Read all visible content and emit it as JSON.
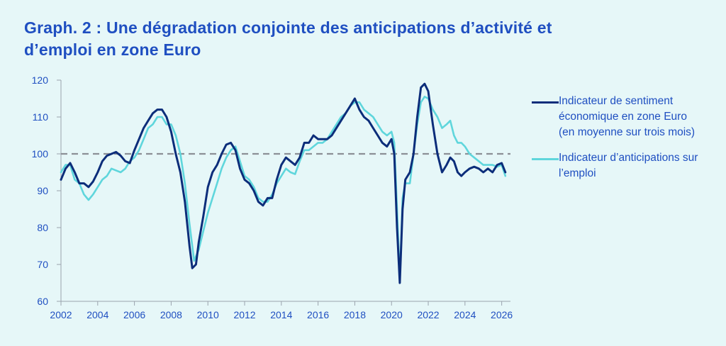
{
  "chart_data": {
    "type": "line",
    "title": "Graph. 2 : Une dégradation conjointe des anticipations d’activité et d’emploi en zone Euro",
    "xlabel": "",
    "ylabel": "",
    "xlim": [
      2002,
      2026.4
    ],
    "ylim": [
      60,
      120
    ],
    "x_ticks": [
      "2002",
      "2004",
      "2006",
      "2008",
      "2010",
      "2012",
      "2014",
      "2016",
      "2018",
      "2020",
      "2022",
      "2024",
      "2026"
    ],
    "y_ticks": [
      "60",
      "70",
      "80",
      "90",
      "100",
      "110",
      "120"
    ],
    "grid": false,
    "reference_line": 100,
    "legend_position": "right",
    "series": [
      {
        "name": "Indicateur de sentiment économique en zone Euro (en moyenne sur trois mois)",
        "color": "#0c2d7a",
        "points": [
          [
            2002.0,
            93
          ],
          [
            2002.25,
            96
          ],
          [
            2002.5,
            97.5
          ],
          [
            2002.75,
            95
          ],
          [
            2003.0,
            92
          ],
          [
            2003.25,
            92
          ],
          [
            2003.5,
            91
          ],
          [
            2003.75,
            92.5
          ],
          [
            2004.0,
            95
          ],
          [
            2004.25,
            98
          ],
          [
            2004.5,
            99.5
          ],
          [
            2004.75,
            100
          ],
          [
            2005.0,
            100.5
          ],
          [
            2005.25,
            99.5
          ],
          [
            2005.5,
            98
          ],
          [
            2005.75,
            97.5
          ],
          [
            2006.0,
            101
          ],
          [
            2006.25,
            104
          ],
          [
            2006.5,
            107
          ],
          [
            2006.75,
            109
          ],
          [
            2007.0,
            111
          ],
          [
            2007.25,
            112
          ],
          [
            2007.5,
            112
          ],
          [
            2007.75,
            110
          ],
          [
            2008.0,
            106
          ],
          [
            2008.25,
            100
          ],
          [
            2008.5,
            95
          ],
          [
            2008.75,
            87
          ],
          [
            2009.0,
            75
          ],
          [
            2009.15,
            69
          ],
          [
            2009.35,
            70
          ],
          [
            2009.5,
            76
          ],
          [
            2009.75,
            83
          ],
          [
            2010.0,
            91
          ],
          [
            2010.25,
            95
          ],
          [
            2010.5,
            97
          ],
          [
            2010.75,
            100
          ],
          [
            2011.0,
            102.5
          ],
          [
            2011.25,
            103
          ],
          [
            2011.5,
            101
          ],
          [
            2011.75,
            96
          ],
          [
            2012.0,
            93
          ],
          [
            2012.25,
            92
          ],
          [
            2012.5,
            90
          ],
          [
            2012.75,
            87
          ],
          [
            2013.0,
            86
          ],
          [
            2013.25,
            88
          ],
          [
            2013.5,
            88
          ],
          [
            2013.75,
            93
          ],
          [
            2014.0,
            97
          ],
          [
            2014.25,
            99
          ],
          [
            2014.5,
            98
          ],
          [
            2014.75,
            97
          ],
          [
            2015.0,
            99
          ],
          [
            2015.25,
            103
          ],
          [
            2015.5,
            103
          ],
          [
            2015.75,
            105
          ],
          [
            2016.0,
            104
          ],
          [
            2016.25,
            104
          ],
          [
            2016.5,
            104
          ],
          [
            2016.75,
            105
          ],
          [
            2017.0,
            107
          ],
          [
            2017.25,
            109
          ],
          [
            2017.5,
            111
          ],
          [
            2017.75,
            113
          ],
          [
            2018.0,
            115
          ],
          [
            2018.25,
            112
          ],
          [
            2018.5,
            110
          ],
          [
            2018.75,
            109
          ],
          [
            2019.0,
            107
          ],
          [
            2019.25,
            105
          ],
          [
            2019.5,
            103
          ],
          [
            2019.75,
            102
          ],
          [
            2020.0,
            104
          ],
          [
            2020.15,
            100
          ],
          [
            2020.3,
            80
          ],
          [
            2020.45,
            65
          ],
          [
            2020.6,
            85
          ],
          [
            2020.75,
            93
          ],
          [
            2021.0,
            95
          ],
          [
            2021.2,
            100
          ],
          [
            2021.4,
            110
          ],
          [
            2021.6,
            118
          ],
          [
            2021.8,
            119
          ],
          [
            2022.0,
            117
          ],
          [
            2022.25,
            108
          ],
          [
            2022.5,
            100
          ],
          [
            2022.75,
            95
          ],
          [
            2023.0,
            97
          ],
          [
            2023.2,
            99
          ],
          [
            2023.4,
            98
          ],
          [
            2023.6,
            95
          ],
          [
            2023.8,
            94
          ],
          [
            2024.0,
            95
          ],
          [
            2024.25,
            96
          ],
          [
            2024.5,
            96.5
          ],
          [
            2024.75,
            96
          ],
          [
            2025.0,
            95
          ],
          [
            2025.25,
            96
          ],
          [
            2025.5,
            95
          ],
          [
            2025.75,
            97
          ],
          [
            2026.0,
            97.5
          ],
          [
            2026.2,
            95
          ]
        ]
      },
      {
        "name": "Indicateur d’anticipations sur l’emploi",
        "color": "#5fd6dc",
        "points": [
          [
            2002.0,
            95
          ],
          [
            2002.25,
            97
          ],
          [
            2002.5,
            97
          ],
          [
            2002.75,
            93
          ],
          [
            2003.0,
            92
          ],
          [
            2003.25,
            89
          ],
          [
            2003.5,
            87.5
          ],
          [
            2003.75,
            89
          ],
          [
            2004.0,
            91
          ],
          [
            2004.25,
            93
          ],
          [
            2004.5,
            94
          ],
          [
            2004.75,
            96
          ],
          [
            2005.0,
            95.5
          ],
          [
            2005.25,
            95
          ],
          [
            2005.5,
            96
          ],
          [
            2005.75,
            98
          ],
          [
            2006.0,
            99
          ],
          [
            2006.25,
            101
          ],
          [
            2006.5,
            104
          ],
          [
            2006.75,
            107
          ],
          [
            2007.0,
            108
          ],
          [
            2007.25,
            110
          ],
          [
            2007.5,
            110
          ],
          [
            2007.75,
            108
          ],
          [
            2008.0,
            108
          ],
          [
            2008.25,
            105
          ],
          [
            2008.5,
            100
          ],
          [
            2008.75,
            92
          ],
          [
            2009.0,
            81
          ],
          [
            2009.25,
            71
          ],
          [
            2009.5,
            74
          ],
          [
            2009.75,
            79
          ],
          [
            2010.0,
            84
          ],
          [
            2010.25,
            88
          ],
          [
            2010.5,
            92
          ],
          [
            2010.75,
            96
          ],
          [
            2011.0,
            99
          ],
          [
            2011.25,
            101
          ],
          [
            2011.5,
            102
          ],
          [
            2011.75,
            98
          ],
          [
            2012.0,
            94
          ],
          [
            2012.25,
            93
          ],
          [
            2012.5,
            91
          ],
          [
            2012.75,
            88
          ],
          [
            2013.0,
            87
          ],
          [
            2013.25,
            87
          ],
          [
            2013.5,
            89
          ],
          [
            2013.75,
            92
          ],
          [
            2014.0,
            94
          ],
          [
            2014.25,
            96
          ],
          [
            2014.5,
            95
          ],
          [
            2014.75,
            94.5
          ],
          [
            2015.0,
            98
          ],
          [
            2015.25,
            101
          ],
          [
            2015.5,
            101
          ],
          [
            2015.75,
            102
          ],
          [
            2016.0,
            103
          ],
          [
            2016.25,
            103
          ],
          [
            2016.5,
            104
          ],
          [
            2016.75,
            106
          ],
          [
            2017.0,
            108
          ],
          [
            2017.25,
            110
          ],
          [
            2017.5,
            111
          ],
          [
            2017.75,
            113
          ],
          [
            2018.0,
            114
          ],
          [
            2018.25,
            114
          ],
          [
            2018.5,
            112
          ],
          [
            2018.75,
            111
          ],
          [
            2019.0,
            110
          ],
          [
            2019.25,
            108
          ],
          [
            2019.5,
            106
          ],
          [
            2019.75,
            105
          ],
          [
            2020.0,
            106
          ],
          [
            2020.15,
            103
          ],
          [
            2020.3,
            85
          ],
          [
            2020.45,
            66
          ],
          [
            2020.6,
            88
          ],
          [
            2020.75,
            92
          ],
          [
            2021.0,
            92
          ],
          [
            2021.2,
            100
          ],
          [
            2021.4,
            108
          ],
          [
            2021.6,
            114
          ],
          [
            2021.8,
            115.5
          ],
          [
            2022.0,
            115
          ],
          [
            2022.25,
            112
          ],
          [
            2022.5,
            110
          ],
          [
            2022.75,
            107
          ],
          [
            2023.0,
            108
          ],
          [
            2023.2,
            109
          ],
          [
            2023.4,
            105
          ],
          [
            2023.6,
            103
          ],
          [
            2023.8,
            103
          ],
          [
            2024.0,
            102
          ],
          [
            2024.25,
            100
          ],
          [
            2024.5,
            99
          ],
          [
            2024.75,
            98
          ],
          [
            2025.0,
            97
          ],
          [
            2025.25,
            97
          ],
          [
            2025.5,
            97
          ],
          [
            2025.75,
            96.5
          ],
          [
            2026.0,
            97
          ],
          [
            2026.2,
            94
          ]
        ]
      }
    ]
  }
}
